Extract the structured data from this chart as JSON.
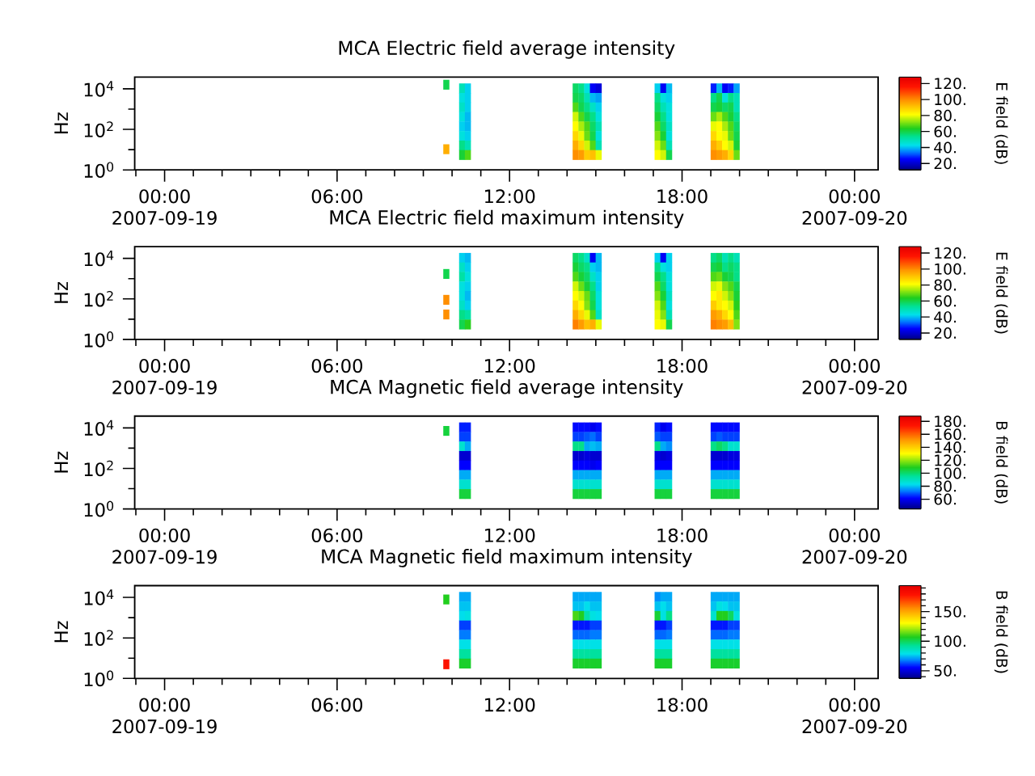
{
  "chart_data": [
    {
      "type": "scatter",
      "title": "MCA Electric field average intensity",
      "ylabel": "Hz",
      "clabel": "E field (dB)",
      "marker": "square",
      "log": "y",
      "xlim": [
        -1.04,
        24.82
      ],
      "ylim": [
        1,
        38000
      ],
      "xticks": [
        {
          "value": -1,
          "label": null
        },
        {
          "value": 0,
          "label": "00:00 2007-09-19"
        },
        {
          "value": 1,
          "label": null
        },
        {
          "value": 2,
          "label": null
        },
        {
          "value": 3,
          "label": null
        },
        {
          "value": 4,
          "label": null
        },
        {
          "value": 5,
          "label": null
        },
        {
          "value": 6,
          "label": "06:00"
        },
        {
          "value": 7,
          "label": null
        },
        {
          "value": 8,
          "label": null
        },
        {
          "value": 9,
          "label": null
        },
        {
          "value": 10,
          "label": null
        },
        {
          "value": 11,
          "label": null
        },
        {
          "value": 12,
          "label": "12:00"
        },
        {
          "value": 13,
          "label": null
        },
        {
          "value": 14,
          "label": null
        },
        {
          "value": 15,
          "label": null
        },
        {
          "value": 16,
          "label": null
        },
        {
          "value": 17,
          "label": null
        },
        {
          "value": 18,
          "label": "18:00"
        },
        {
          "value": 19,
          "label": null
        },
        {
          "value": 20,
          "label": null
        },
        {
          "value": 21,
          "label": null
        },
        {
          "value": 22,
          "label": null
        },
        {
          "value": 23,
          "label": null
        },
        {
          "value": 24,
          "label": "00:00 2007-09-20"
        }
      ],
      "yticks": [
        {
          "value": 1,
          "label": "10$^{0}$"
        },
        {
          "value": 10,
          "label": null
        },
        {
          "value": 100,
          "label": "10$^{2}$"
        },
        {
          "value": 1000,
          "label": null
        },
        {
          "value": 10000,
          "label": "10$^{4}$"
        }
      ],
      "clim": [
        12,
        128
      ],
      "cticks": [
        {
          "value": 20,
          "label": "20."
        },
        {
          "value": 40,
          "label": "40."
        },
        {
          "value": 60,
          "label": "60."
        },
        {
          "value": 80,
          "label": "80."
        },
        {
          "value": 100,
          "label": "100."
        },
        {
          "value": 120,
          "label": "120."
        }
      ],
      "x": [
        9.8,
        9.8,
        10.35,
        10.35,
        10.35,
        10.35,
        10.35,
        10.35,
        10.35,
        10.35,
        10.55,
        10.55,
        10.55,
        10.55,
        10.55,
        10.55,
        10.55,
        10.55,
        14.3,
        14.3,
        14.3,
        14.3,
        14.3,
        14.3,
        14.3,
        14.3,
        14.5,
        14.5,
        14.5,
        14.5,
        14.5,
        14.5,
        14.5,
        14.5,
        14.7,
        14.7,
        14.7,
        14.7,
        14.7,
        14.7,
        14.7,
        14.7,
        14.9,
        14.9,
        14.9,
        14.9,
        14.9,
        14.9,
        14.9,
        14.9,
        15.1,
        15.1,
        15.1,
        15.1,
        15.1,
        15.1,
        15.1,
        15.1,
        17.15,
        17.15,
        17.15,
        17.15,
        17.15,
        17.15,
        17.15,
        17.15,
        17.35,
        17.35,
        17.35,
        17.35,
        17.35,
        17.35,
        17.35,
        17.35,
        17.55,
        17.55,
        17.55,
        17.55,
        17.55,
        17.55,
        17.55,
        17.55,
        19.1,
        19.1,
        19.1,
        19.1,
        19.1,
        19.1,
        19.1,
        19.1,
        19.3,
        19.3,
        19.3,
        19.3,
        19.3,
        19.3,
        19.3,
        19.3,
        19.5,
        19.5,
        19.5,
        19.5,
        19.5,
        19.5,
        19.5,
        19.5,
        19.7,
        19.7,
        19.7,
        19.7,
        19.7,
        19.7,
        19.7,
        19.7,
        19.9,
        19.9,
        19.9,
        19.9,
        19.9,
        19.9,
        19.9,
        19.9
      ],
      "values": [
        16000,
        10.5,
        10600,
        3590,
        1220,
        412,
        140,
        47.3,
        16,
        5.43,
        10600,
        3590,
        1220,
        412,
        140,
        47.3,
        16,
        5.43,
        10600,
        3590,
        1220,
        412,
        140,
        47.3,
        16,
        5.43,
        10600,
        3590,
        1220,
        412,
        140,
        47.3,
        16,
        5.43,
        10600,
        3590,
        1220,
        412,
        140,
        47.3,
        16,
        5.43,
        10600,
        3590,
        1220,
        412,
        140,
        47.3,
        16,
        5.43,
        10600,
        3590,
        1220,
        412,
        140,
        47.3,
        16,
        5.43,
        10600,
        3590,
        1220,
        412,
        140,
        47.3,
        16,
        5.43,
        10600,
        3590,
        1220,
        412,
        140,
        47.3,
        16,
        5.43,
        10600,
        3590,
        1220,
        412,
        140,
        47.3,
        16,
        5.43,
        10600,
        3590,
        1220,
        412,
        140,
        47.3,
        16,
        5.43,
        10600,
        3590,
        1220,
        412,
        140,
        47.3,
        16,
        5.43,
        10600,
        3590,
        1220,
        412,
        140,
        47.3,
        16,
        5.43,
        10600,
        3590,
        1220,
        412,
        140,
        47.3,
        16,
        5.43,
        10600,
        3590,
        1220,
        412,
        140,
        47.3,
        16,
        5.43
      ],
      "cvalues": [
        60,
        95,
        50,
        45,
        48,
        45,
        42,
        45,
        55,
        62,
        42,
        42,
        42,
        40,
        40,
        42,
        50,
        68,
        58,
        60,
        68,
        78,
        82,
        88,
        95,
        100,
        55,
        58,
        60,
        68,
        75,
        80,
        88,
        98,
        45,
        50,
        55,
        60,
        68,
        70,
        78,
        90,
        25,
        40,
        48,
        55,
        58,
        60,
        68,
        92,
        22,
        38,
        42,
        45,
        50,
        45,
        50,
        80,
        42,
        55,
        58,
        62,
        68,
        72,
        78,
        82,
        25,
        45,
        50,
        55,
        58,
        62,
        70,
        78,
        40,
        42,
        45,
        45,
        48,
        45,
        50,
        60,
        28,
        55,
        60,
        70,
        80,
        88,
        95,
        100,
        40,
        60,
        62,
        75,
        82,
        82,
        90,
        98,
        25,
        45,
        58,
        68,
        75,
        80,
        82,
        95,
        28,
        55,
        60,
        62,
        68,
        70,
        78,
        88,
        38,
        50,
        50,
        55,
        58,
        60,
        62,
        70
      ]
    },
    {
      "type": "scatter",
      "title": "MCA Electric field maximum intensity",
      "ylabel": "Hz",
      "clabel": "E field (dB)",
      "marker": "square",
      "log": "y",
      "xlim": [
        -1.04,
        24.82
      ],
      "ylim": [
        1,
        38000
      ],
      "xticks": [
        {
          "value": -1,
          "label": null
        },
        {
          "value": 0,
          "label": "00:00 2007-09-19"
        },
        {
          "value": 1,
          "label": null
        },
        {
          "value": 2,
          "label": null
        },
        {
          "value": 3,
          "label": null
        },
        {
          "value": 4,
          "label": null
        },
        {
          "value": 5,
          "label": null
        },
        {
          "value": 6,
          "label": "06:00"
        },
        {
          "value": 7,
          "label": null
        },
        {
          "value": 8,
          "label": null
        },
        {
          "value": 9,
          "label": null
        },
        {
          "value": 10,
          "label": null
        },
        {
          "value": 11,
          "label": null
        },
        {
          "value": 12,
          "label": "12:00"
        },
        {
          "value": 13,
          "label": null
        },
        {
          "value": 14,
          "label": null
        },
        {
          "value": 15,
          "label": null
        },
        {
          "value": 16,
          "label": null
        },
        {
          "value": 17,
          "label": null
        },
        {
          "value": 18,
          "label": "18:00"
        },
        {
          "value": 19,
          "label": null
        },
        {
          "value": 20,
          "label": null
        },
        {
          "value": 21,
          "label": null
        },
        {
          "value": 22,
          "label": null
        },
        {
          "value": 23,
          "label": null
        },
        {
          "value": 24,
          "label": "00:00 2007-09-20"
        }
      ],
      "yticks": [
        {
          "value": 1,
          "label": "10$^{0}$"
        },
        {
          "value": 10,
          "label": null
        },
        {
          "value": 100,
          "label": "10$^{2}$"
        },
        {
          "value": 1000,
          "label": null
        },
        {
          "value": 10000,
          "label": "10$^{4}$"
        }
      ],
      "clim": [
        12,
        128
      ],
      "cticks": [
        {
          "value": 20,
          "label": "20."
        },
        {
          "value": 40,
          "label": "40."
        },
        {
          "value": 60,
          "label": "60."
        },
        {
          "value": 80,
          "label": "80."
        },
        {
          "value": 100,
          "label": "100."
        },
        {
          "value": 120,
          "label": "120."
        }
      ],
      "x": [
        9.8,
        9.8,
        9.8,
        10.35,
        10.35,
        10.35,
        10.35,
        10.35,
        10.35,
        10.35,
        10.35,
        10.55,
        10.55,
        10.55,
        10.55,
        10.55,
        10.55,
        10.55,
        10.55,
        14.3,
        14.3,
        14.3,
        14.3,
        14.3,
        14.3,
        14.3,
        14.3,
        14.5,
        14.5,
        14.5,
        14.5,
        14.5,
        14.5,
        14.5,
        14.5,
        14.7,
        14.7,
        14.7,
        14.7,
        14.7,
        14.7,
        14.7,
        14.7,
        14.9,
        14.9,
        14.9,
        14.9,
        14.9,
        14.9,
        14.9,
        14.9,
        15.1,
        15.1,
        15.1,
        15.1,
        15.1,
        15.1,
        15.1,
        15.1,
        17.15,
        17.15,
        17.15,
        17.15,
        17.15,
        17.15,
        17.15,
        17.15,
        17.35,
        17.35,
        17.35,
        17.35,
        17.35,
        17.35,
        17.35,
        17.35,
        17.55,
        17.55,
        17.55,
        17.55,
        17.55,
        17.55,
        17.55,
        17.55,
        19.1,
        19.1,
        19.1,
        19.1,
        19.1,
        19.1,
        19.1,
        19.1,
        19.3,
        19.3,
        19.3,
        19.3,
        19.3,
        19.3,
        19.3,
        19.3,
        19.5,
        19.5,
        19.5,
        19.5,
        19.5,
        19.5,
        19.5,
        19.5,
        19.7,
        19.7,
        19.7,
        19.7,
        19.7,
        19.7,
        19.7,
        19.7,
        19.9,
        19.9,
        19.9,
        19.9,
        19.9,
        19.9,
        19.9,
        19.9
      ],
      "values": [
        1700,
        90,
        17,
        10600,
        3590,
        1220,
        412,
        140,
        47.3,
        16,
        5.43,
        10600,
        3590,
        1220,
        412,
        140,
        47.3,
        16,
        5.43,
        10600,
        3590,
        1220,
        412,
        140,
        47.3,
        16,
        5.43,
        10600,
        3590,
        1220,
        412,
        140,
        47.3,
        16,
        5.43,
        10600,
        3590,
        1220,
        412,
        140,
        47.3,
        16,
        5.43,
        10600,
        3590,
        1220,
        412,
        140,
        47.3,
        16,
        5.43,
        10600,
        3590,
        1220,
        412,
        140,
        47.3,
        16,
        5.43,
        10600,
        3590,
        1220,
        412,
        140,
        47.3,
        16,
        5.43,
        10600,
        3590,
        1220,
        412,
        140,
        47.3,
        16,
        5.43,
        10600,
        3590,
        1220,
        412,
        140,
        47.3,
        16,
        5.43,
        10600,
        3590,
        1220,
        412,
        140,
        47.3,
        16,
        5.43,
        10600,
        3590,
        1220,
        412,
        140,
        47.3,
        16,
        5.43,
        10600,
        3590,
        1220,
        412,
        140,
        47.3,
        16,
        5.43,
        10600,
        3590,
        1220,
        412,
        140,
        47.3,
        16,
        5.43,
        10600,
        3590,
        1220,
        412,
        140,
        47.3,
        16,
        5.43
      ],
      "cvalues": [
        60,
        100,
        100,
        42,
        48,
        52,
        45,
        45,
        48,
        55,
        60,
        40,
        42,
        45,
        42,
        40,
        42,
        52,
        65,
        58,
        62,
        68,
        78,
        82,
        88,
        95,
        102,
        55,
        58,
        62,
        70,
        78,
        82,
        88,
        98,
        48,
        55,
        58,
        62,
        70,
        72,
        80,
        92,
        25,
        42,
        48,
        55,
        58,
        60,
        68,
        95,
        40,
        40,
        42,
        42,
        45,
        45,
        48,
        80,
        42,
        55,
        60,
        68,
        72,
        78,
        80,
        82,
        25,
        45,
        55,
        58,
        62,
        68,
        72,
        80,
        42,
        42,
        45,
        45,
        48,
        45,
        50,
        60,
        55,
        60,
        68,
        78,
        82,
        90,
        98,
        102,
        58,
        62,
        70,
        80,
        85,
        85,
        95,
        100,
        50,
        55,
        62,
        72,
        78,
        82,
        88,
        98,
        55,
        58,
        60,
        68,
        72,
        78,
        82,
        92,
        50,
        55,
        55,
        60,
        62,
        65,
        68,
        72
      ]
    },
    {
      "type": "scatter",
      "title": "MCA Magnetic field average intensity",
      "ylabel": "Hz",
      "clabel": "B field (dB)",
      "marker": "square",
      "log": "y",
      "xlim": [
        -1.04,
        24.82
      ],
      "ylim": [
        1,
        38000
      ],
      "xticks": [
        {
          "value": -1,
          "label": null
        },
        {
          "value": 0,
          "label": "00:00 2007-09-19"
        },
        {
          "value": 1,
          "label": null
        },
        {
          "value": 2,
          "label": null
        },
        {
          "value": 3,
          "label": null
        },
        {
          "value": 4,
          "label": null
        },
        {
          "value": 5,
          "label": null
        },
        {
          "value": 6,
          "label": "06:00"
        },
        {
          "value": 7,
          "label": null
        },
        {
          "value": 8,
          "label": null
        },
        {
          "value": 9,
          "label": null
        },
        {
          "value": 10,
          "label": null
        },
        {
          "value": 11,
          "label": null
        },
        {
          "value": 12,
          "label": "12:00"
        },
        {
          "value": 13,
          "label": null
        },
        {
          "value": 14,
          "label": null
        },
        {
          "value": 15,
          "label": null
        },
        {
          "value": 16,
          "label": null
        },
        {
          "value": 17,
          "label": null
        },
        {
          "value": 18,
          "label": "18:00"
        },
        {
          "value": 19,
          "label": null
        },
        {
          "value": 20,
          "label": null
        },
        {
          "value": 21,
          "label": null
        },
        {
          "value": 22,
          "label": null
        },
        {
          "value": 23,
          "label": null
        },
        {
          "value": 24,
          "label": "00:00 2007-09-20"
        }
      ],
      "yticks": [
        {
          "value": 1,
          "label": "10$^{0}$"
        },
        {
          "value": 10,
          "label": null
        },
        {
          "value": 100,
          "label": "10$^{2}$"
        },
        {
          "value": 1000,
          "label": null
        },
        {
          "value": 10000,
          "label": "10$^{4}$"
        }
      ],
      "clim": [
        45,
        188
      ],
      "cticks": [
        {
          "value": 60,
          "label": "60."
        },
        {
          "value": 80,
          "label": "80."
        },
        {
          "value": 100,
          "label": "100."
        },
        {
          "value": 120,
          "label": "120."
        },
        {
          "value": 140,
          "label": "140."
        },
        {
          "value": 160,
          "label": "160."
        },
        {
          "value": 180,
          "label": "180."
        }
      ],
      "x": [
        9.8,
        10.35,
        10.35,
        10.35,
        10.35,
        10.35,
        10.35,
        10.35,
        10.35,
        10.55,
        10.55,
        10.55,
        10.55,
        10.55,
        10.55,
        10.55,
        10.55,
        14.3,
        14.3,
        14.3,
        14.3,
        14.3,
        14.3,
        14.3,
        14.3,
        14.5,
        14.5,
        14.5,
        14.5,
        14.5,
        14.5,
        14.5,
        14.5,
        14.7,
        14.7,
        14.7,
        14.7,
        14.7,
        14.7,
        14.7,
        14.7,
        14.9,
        14.9,
        14.9,
        14.9,
        14.9,
        14.9,
        14.9,
        14.9,
        15.1,
        15.1,
        15.1,
        15.1,
        15.1,
        15.1,
        15.1,
        15.1,
        17.15,
        17.15,
        17.15,
        17.15,
        17.15,
        17.15,
        17.15,
        17.15,
        17.35,
        17.35,
        17.35,
        17.35,
        17.35,
        17.35,
        17.35,
        17.35,
        17.55,
        17.55,
        17.55,
        17.55,
        17.55,
        17.55,
        17.55,
        17.55,
        19.1,
        19.1,
        19.1,
        19.1,
        19.1,
        19.1,
        19.1,
        19.1,
        19.3,
        19.3,
        19.3,
        19.3,
        19.3,
        19.3,
        19.3,
        19.3,
        19.5,
        19.5,
        19.5,
        19.5,
        19.5,
        19.5,
        19.5,
        19.5,
        19.7,
        19.7,
        19.7,
        19.7,
        19.7,
        19.7,
        19.7,
        19.7,
        19.9,
        19.9,
        19.9,
        19.9,
        19.9,
        19.9,
        19.9,
        19.9
      ],
      "values": [
        7100,
        10600,
        3590,
        1220,
        412,
        140,
        47.3,
        16,
        5.43,
        10600,
        3590,
        1220,
        412,
        140,
        47.3,
        16,
        5.43,
        10600,
        3590,
        1220,
        412,
        140,
        47.3,
        16,
        5.43,
        10600,
        3590,
        1220,
        412,
        140,
        47.3,
        16,
        5.43,
        10600,
        3590,
        1220,
        412,
        140,
        47.3,
        16,
        5.43,
        10600,
        3590,
        1220,
        412,
        140,
        47.3,
        16,
        5.43,
        10600,
        3590,
        1220,
        412,
        140,
        47.3,
        16,
        5.43,
        10600,
        3590,
        1220,
        412,
        140,
        47.3,
        16,
        5.43,
        10600,
        3590,
        1220,
        412,
        140,
        47.3,
        16,
        5.43,
        10600,
        3590,
        1220,
        412,
        140,
        47.3,
        16,
        5.43,
        10600,
        3590,
        1220,
        412,
        140,
        47.3,
        16,
        5.43,
        10600,
        3590,
        1220,
        412,
        140,
        47.3,
        16,
        5.43,
        10600,
        3590,
        1220,
        412,
        140,
        47.3,
        16,
        5.43,
        10600,
        3590,
        1220,
        412,
        140,
        47.3,
        16,
        5.43,
        10600,
        3590,
        1220,
        412,
        140,
        47.3,
        16,
        5.43
      ],
      "cvalues": [
        106,
        65,
        68,
        88,
        56,
        62,
        78,
        88,
        106,
        65,
        68,
        78,
        56,
        62,
        78,
        88,
        106,
        63,
        68,
        98,
        56,
        62,
        78,
        88,
        106,
        63,
        68,
        98,
        56,
        62,
        78,
        88,
        106,
        63,
        70,
        78,
        58,
        62,
        78,
        88,
        106,
        60,
        72,
        80,
        56,
        60,
        78,
        88,
        106,
        63,
        68,
        78,
        56,
        62,
        78,
        88,
        106,
        65,
        70,
        98,
        58,
        62,
        78,
        88,
        106,
        60,
        68,
        78,
        56,
        62,
        78,
        88,
        106,
        63,
        68,
        75,
        58,
        62,
        78,
        88,
        106,
        63,
        68,
        98,
        56,
        62,
        78,
        88,
        106,
        63,
        70,
        102,
        56,
        62,
        78,
        88,
        106,
        63,
        68,
        98,
        56,
        62,
        78,
        88,
        106,
        63,
        68,
        88,
        58,
        62,
        78,
        88,
        106,
        63,
        68,
        88,
        58,
        62,
        78,
        88,
        106
      ]
    },
    {
      "type": "scatter",
      "title": "MCA Magnetic field maximum intensity",
      "ylabel": "Hz",
      "clabel": "B field (dB)",
      "marker": "square",
      "log": "y",
      "xlim": [
        -1.04,
        24.82
      ],
      "ylim": [
        1,
        38000
      ],
      "xticks": [
        {
          "value": -1,
          "label": null
        },
        {
          "value": 0,
          "label": "00:00 2007-09-19"
        },
        {
          "value": 1,
          "label": null
        },
        {
          "value": 2,
          "label": null
        },
        {
          "value": 3,
          "label": null
        },
        {
          "value": 4,
          "label": null
        },
        {
          "value": 5,
          "label": null
        },
        {
          "value": 6,
          "label": "06:00"
        },
        {
          "value": 7,
          "label": null
        },
        {
          "value": 8,
          "label": null
        },
        {
          "value": 9,
          "label": null
        },
        {
          "value": 10,
          "label": null
        },
        {
          "value": 11,
          "label": null
        },
        {
          "value": 12,
          "label": "12:00"
        },
        {
          "value": 13,
          "label": null
        },
        {
          "value": 14,
          "label": null
        },
        {
          "value": 15,
          "label": null
        },
        {
          "value": 16,
          "label": null
        },
        {
          "value": 17,
          "label": null
        },
        {
          "value": 18,
          "label": "18:00"
        },
        {
          "value": 19,
          "label": null
        },
        {
          "value": 20,
          "label": null
        },
        {
          "value": 21,
          "label": null
        },
        {
          "value": 22,
          "label": null
        },
        {
          "value": 23,
          "label": null
        },
        {
          "value": 24,
          "label": "00:00 2007-09-20"
        }
      ],
      "yticks": [
        {
          "value": 1,
          "label": "10$^{0}$"
        },
        {
          "value": 10,
          "label": null
        },
        {
          "value": 100,
          "label": "10$^{2}$"
        },
        {
          "value": 1000,
          "label": null
        },
        {
          "value": 10000,
          "label": "10$^{4}$"
        }
      ],
      "clim": [
        37,
        194
      ],
      "cticks": [
        {
          "value": 40,
          "label": null
        },
        {
          "value": 50,
          "label": "50."
        },
        {
          "value": 60,
          "label": null
        },
        {
          "value": 70,
          "label": null
        },
        {
          "value": 80,
          "label": null
        },
        {
          "value": 90,
          "label": null
        },
        {
          "value": 100,
          "label": "100."
        },
        {
          "value": 110,
          "label": null
        },
        {
          "value": 120,
          "label": null
        },
        {
          "value": 130,
          "label": null
        },
        {
          "value": 140,
          "label": null
        },
        {
          "value": 150,
          "label": "150."
        },
        {
          "value": 160,
          "label": null
        },
        {
          "value": 170,
          "label": null
        },
        {
          "value": 180,
          "label": null
        },
        {
          "value": 190,
          "label": null
        }
      ],
      "x": [
        9.8,
        9.8,
        10.35,
        10.35,
        10.35,
        10.35,
        10.35,
        10.35,
        10.35,
        10.35,
        10.55,
        10.55,
        10.55,
        10.55,
        10.55,
        10.55,
        10.55,
        10.55,
        14.3,
        14.3,
        14.3,
        14.3,
        14.3,
        14.3,
        14.3,
        14.3,
        14.5,
        14.5,
        14.5,
        14.5,
        14.5,
        14.5,
        14.5,
        14.5,
        14.7,
        14.7,
        14.7,
        14.7,
        14.7,
        14.7,
        14.7,
        14.7,
        14.9,
        14.9,
        14.9,
        14.9,
        14.9,
        14.9,
        14.9,
        14.9,
        15.1,
        15.1,
        15.1,
        15.1,
        15.1,
        15.1,
        15.1,
        15.1,
        17.15,
        17.15,
        17.15,
        17.15,
        17.15,
        17.15,
        17.15,
        17.15,
        17.35,
        17.35,
        17.35,
        17.35,
        17.35,
        17.35,
        17.35,
        17.35,
        17.55,
        17.55,
        17.55,
        17.55,
        17.55,
        17.55,
        17.55,
        17.55,
        19.1,
        19.1,
        19.1,
        19.1,
        19.1,
        19.1,
        19.1,
        19.1,
        19.3,
        19.3,
        19.3,
        19.3,
        19.3,
        19.3,
        19.3,
        19.3,
        19.5,
        19.5,
        19.5,
        19.5,
        19.5,
        19.5,
        19.5,
        19.5,
        19.7,
        19.7,
        19.7,
        19.7,
        19.7,
        19.7,
        19.7,
        19.7,
        19.9,
        19.9,
        19.9,
        19.9,
        19.9,
        19.9,
        19.9,
        19.9
      ],
      "values": [
        7900,
        5,
        10600,
        3590,
        1220,
        412,
        140,
        47.3,
        16,
        5.43,
        10600,
        3590,
        1220,
        412,
        140,
        47.3,
        16,
        5.43,
        10600,
        3590,
        1220,
        412,
        140,
        47.3,
        16,
        5.43,
        10600,
        3590,
        1220,
        412,
        140,
        47.3,
        16,
        5.43,
        10600,
        3590,
        1220,
        412,
        140,
        47.3,
        16,
        5.43,
        10600,
        3590,
        1220,
        412,
        140,
        47.3,
        16,
        5.43,
        10600,
        3590,
        1220,
        412,
        140,
        47.3,
        16,
        5.43,
        10600,
        3590,
        1220,
        412,
        140,
        47.3,
        16,
        5.43,
        10600,
        3590,
        1220,
        412,
        140,
        47.3,
        16,
        5.43,
        10600,
        3590,
        1220,
        412,
        140,
        47.3,
        16,
        5.43,
        10600,
        3590,
        1220,
        412,
        140,
        47.3,
        16,
        5.43,
        10600,
        3590,
        1220,
        412,
        140,
        47.3,
        16,
        5.43,
        10600,
        3590,
        1220,
        412,
        140,
        47.3,
        16,
        5.43,
        10600,
        3590,
        1220,
        412,
        140,
        47.3,
        16,
        5.43,
        10600,
        3590,
        1220,
        412,
        140,
        47.3,
        16,
        5.43
      ],
      "cvalues": [
        108,
        180,
        73,
        76,
        79,
        62,
        68,
        80,
        92,
        106,
        73,
        76,
        81,
        62,
        68,
        80,
        92,
        106,
        73,
        76,
        112,
        58,
        66,
        80,
        92,
        106,
        73,
        76,
        108,
        58,
        66,
        80,
        92,
        106,
        73,
        79,
        90,
        58,
        66,
        80,
        92,
        106,
        73,
        76,
        81,
        62,
        68,
        80,
        92,
        106,
        73,
        76,
        79,
        62,
        68,
        80,
        92,
        106,
        70,
        76,
        105,
        58,
        66,
        80,
        92,
        106,
        73,
        79,
        81,
        58,
        66,
        80,
        92,
        106,
        73,
        76,
        95,
        62,
        68,
        80,
        92,
        106,
        73,
        76,
        84,
        58,
        66,
        80,
        92,
        106,
        73,
        81,
        108,
        58,
        66,
        80,
        92,
        106,
        73,
        79,
        108,
        58,
        66,
        80,
        92,
        106,
        73,
        76,
        100,
        62,
        68,
        80,
        92,
        106,
        73,
        76,
        81,
        62,
        68,
        80,
        92,
        106
      ]
    }
  ]
}
